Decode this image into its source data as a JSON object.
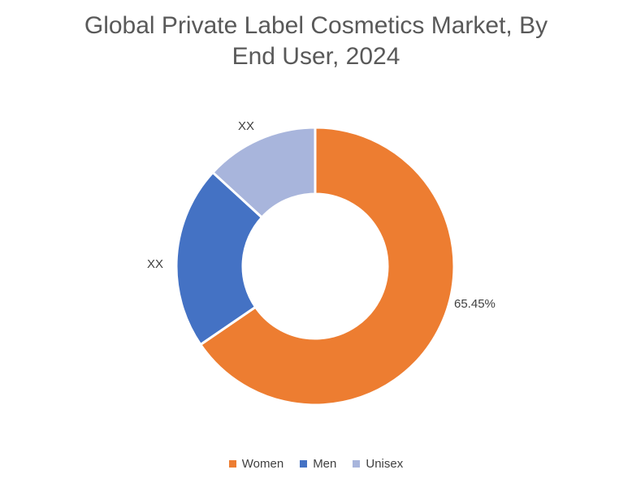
{
  "title": {
    "line1": "Global Private Label Cosmetics Market, By",
    "line2": "End User, 2024",
    "full": "Global Private Label Cosmetics Market, By End User, 2024"
  },
  "chart_data": {
    "type": "pie",
    "subtype": "donut",
    "title": "Global Private Label Cosmetics Market, By End User, 2024",
    "categories": [
      "Women",
      "Men",
      "Unisex"
    ],
    "values": [
      65.45,
      21.36,
      13.19
    ],
    "labels": [
      "65.45%",
      "XX",
      "XX"
    ],
    "colors": [
      "#ED7D31",
      "#4472C4",
      "#A8B5DC"
    ],
    "start_angle_deg": 0,
    "direction": "clockwise",
    "donut_hole_ratio": 0.52,
    "legend_position": "bottom",
    "values_note": "Men and Unisex slice values are masked as XX in the chart; numeric values estimated from arc angles"
  },
  "legend": {
    "items": [
      {
        "label": "Women",
        "color": "#ED7D31"
      },
      {
        "label": "Men",
        "color": "#4472C4"
      },
      {
        "label": "Unisex",
        "color": "#A8B5DC"
      }
    ]
  }
}
